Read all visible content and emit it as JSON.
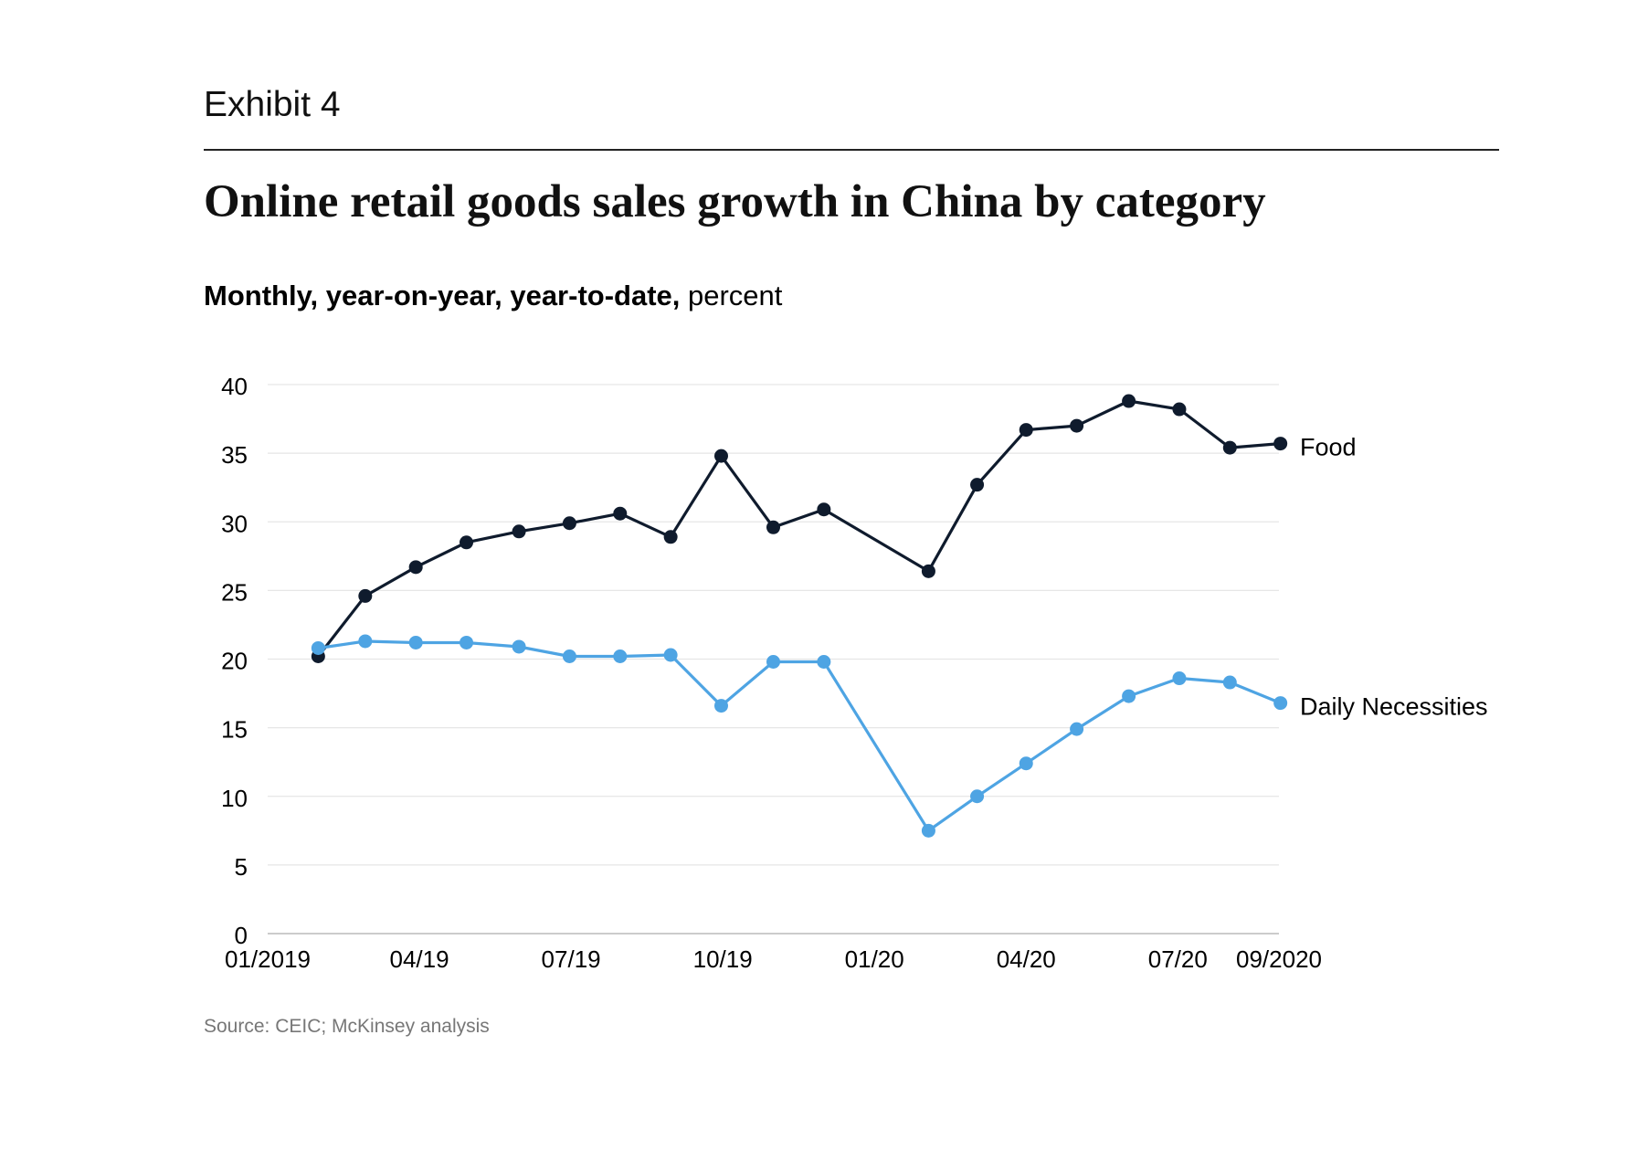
{
  "header": {
    "exhibit": "Exhibit 4",
    "title": "Online retail goods sales growth in China by category",
    "subtitle_bold": "Monthly, year-on-year, year-to-date,",
    "subtitle_regular": " percent"
  },
  "footer": {
    "source": "Source: CEIC; McKinsey analysis"
  },
  "colors": {
    "food": "#0f1b2d",
    "daily_necessities": "#4ea4e3",
    "grid": "#e6e6e6",
    "axis": "#bbbbbb",
    "text": "#000000"
  },
  "chart_data": {
    "type": "line",
    "y_ticks": [
      0,
      5,
      10,
      15,
      20,
      25,
      30,
      35,
      40
    ],
    "ylim": [
      0,
      40
    ],
    "x_tick_labels": [
      "01/2019",
      "04/19",
      "07/19",
      "10/19",
      "01/20",
      "04/20",
      "07/20",
      "09/2020"
    ],
    "x_tick_positions": [
      0,
      3,
      6,
      9,
      12,
      15,
      18,
      20
    ],
    "xlim": [
      0,
      20
    ],
    "grid": true,
    "legend": "direct labels at line ends (right)",
    "series": [
      {
        "name": "Food",
        "color": "#0f1b2d",
        "points": [
          {
            "x": 1,
            "y": 20.2
          },
          {
            "x": 1.93,
            "y": 24.6
          },
          {
            "x": 2.93,
            "y": 26.7
          },
          {
            "x": 3.93,
            "y": 28.5
          },
          {
            "x": 4.97,
            "y": 29.3
          },
          {
            "x": 5.97,
            "y": 29.9
          },
          {
            "x": 6.97,
            "y": 30.6
          },
          {
            "x": 7.97,
            "y": 28.9
          },
          {
            "x": 8.97,
            "y": 34.8
          },
          {
            "x": 10,
            "y": 29.6
          },
          {
            "x": 11,
            "y": 30.9
          },
          {
            "x": 13.07,
            "y": 26.4
          },
          {
            "x": 14.03,
            "y": 32.7
          },
          {
            "x": 15,
            "y": 36.7
          },
          {
            "x": 16,
            "y": 37
          },
          {
            "x": 17.03,
            "y": 38.8
          },
          {
            "x": 18.03,
            "y": 38.2
          },
          {
            "x": 19.03,
            "y": 35.4
          },
          {
            "x": 20.03,
            "y": 35.7
          }
        ]
      },
      {
        "name": "Daily Necessities",
        "color": "#4ea4e3",
        "points": [
          {
            "x": 1,
            "y": 20.8
          },
          {
            "x": 1.93,
            "y": 21.3
          },
          {
            "x": 2.93,
            "y": 21.2
          },
          {
            "x": 3.93,
            "y": 21.2
          },
          {
            "x": 4.97,
            "y": 20.9
          },
          {
            "x": 5.97,
            "y": 20.2
          },
          {
            "x": 6.97,
            "y": 20.2
          },
          {
            "x": 7.97,
            "y": 20.3
          },
          {
            "x": 8.97,
            "y": 16.6
          },
          {
            "x": 10,
            "y": 19.8
          },
          {
            "x": 11,
            "y": 19.8
          },
          {
            "x": 13.07,
            "y": 7.5
          },
          {
            "x": 14.03,
            "y": 10
          },
          {
            "x": 15,
            "y": 12.4
          },
          {
            "x": 16,
            "y": 14.9
          },
          {
            "x": 17.03,
            "y": 17.3
          },
          {
            "x": 18.03,
            "y": 18.6
          },
          {
            "x": 19.03,
            "y": 18.3
          },
          {
            "x": 20.03,
            "y": 16.8
          }
        ]
      }
    ]
  }
}
